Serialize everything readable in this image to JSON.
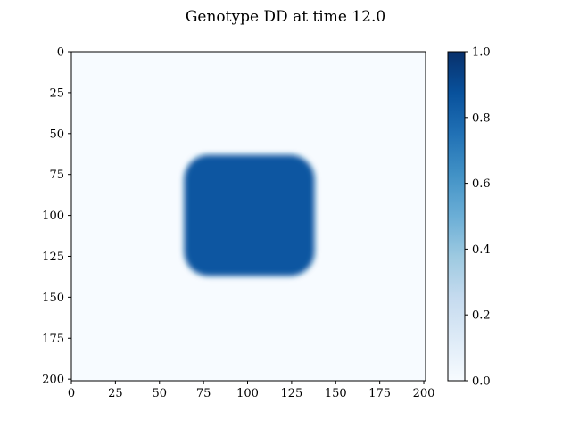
{
  "chart_data": {
    "type": "heatmap",
    "title": "Genotype DD at time 12.0",
    "xlabel": "",
    "ylabel": "",
    "xlim": [
      0,
      201
    ],
    "ylim": [
      201,
      0
    ],
    "x_ticks": [
      0,
      25,
      50,
      75,
      100,
      125,
      150,
      175,
      200
    ],
    "y_ticks": [
      0,
      25,
      50,
      75,
      100,
      125,
      150,
      175,
      200
    ],
    "colormap": "Blues",
    "colormap_stops": [
      "#f7fbff",
      "#deebf7",
      "#c6dbef",
      "#9ecae1",
      "#6baed6",
      "#4292c6",
      "#2171b5",
      "#08519c",
      "#08306b"
    ],
    "value_range": [
      0,
      1
    ],
    "background_value": 0.0,
    "region": {
      "shape": "rounded-square",
      "x_range": [
        64,
        138
      ],
      "y_range": [
        63,
        137
      ],
      "corner_radius": 14,
      "value": 0.85
    },
    "colorbar": {
      "ticks": [
        0.0,
        0.2,
        0.4,
        0.6,
        0.8,
        1.0
      ],
      "tick_labels": [
        "0.0",
        "0.2",
        "0.4",
        "0.6",
        "0.8",
        "1.0"
      ]
    },
    "grid": false,
    "legend": "none"
  }
}
